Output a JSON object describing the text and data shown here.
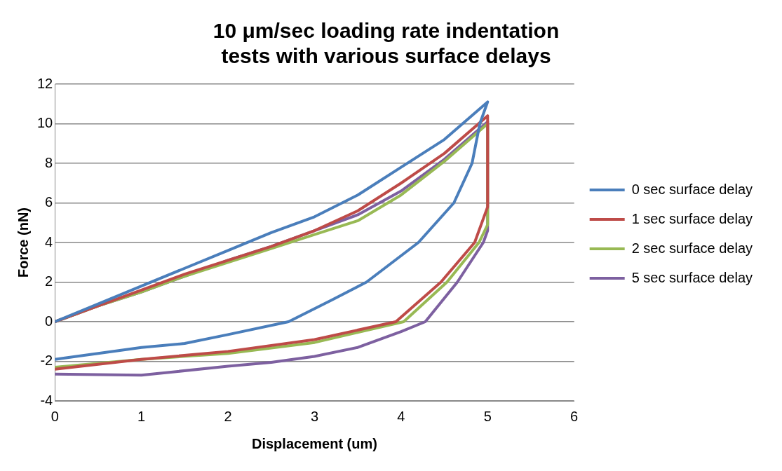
{
  "chart_data": {
    "type": "line",
    "title": "10 μm/sec loading rate indentation tests with various surface delays",
    "xlabel": "Displacement (um)",
    "ylabel": "Force (nN)",
    "xlim": [
      0,
      6
    ],
    "xticks": [
      0,
      1,
      2,
      3,
      4,
      5,
      6
    ],
    "ylim": [
      -4,
      12
    ],
    "yticks": [
      -4,
      -2,
      0,
      2,
      4,
      6,
      8,
      10,
      12
    ],
    "grid": "y",
    "legend": "right",
    "marker": "none",
    "line_style": "solid",
    "series": [
      {
        "name": "0 sec surface delay",
        "color": "#4a7ebb",
        "x": [
          0,
          0.5,
          1,
          1.5,
          2,
          2.5,
          3,
          3.5,
          4,
          4.5,
          5,
          4.91,
          4.82,
          4.61,
          4.2,
          3.6,
          3.2,
          2.7,
          2,
          1.5,
          1,
          0.5,
          0
        ],
        "values": [
          0,
          0.9,
          1.8,
          2.7,
          3.6,
          4.5,
          5.3,
          6.4,
          7.8,
          9.2,
          11.1,
          10,
          8,
          6,
          4,
          2,
          1.1,
          0,
          -0.65,
          -1.1,
          -1.3,
          -1.6,
          -1.9
        ]
      },
      {
        "name": "1 sec surface delay",
        "color": "#be4b48",
        "x": [
          0,
          0.5,
          1,
          1.5,
          2,
          2.5,
          3,
          3.5,
          4,
          4.5,
          5,
          5,
          4.85,
          4.46,
          3.94,
          3,
          2,
          1,
          0
        ],
        "values": [
          0,
          0.8,
          1.6,
          2.4,
          3.1,
          3.8,
          4.6,
          5.6,
          7,
          8.5,
          10.4,
          5.8,
          4,
          2,
          0,
          -0.9,
          -1.5,
          -1.9,
          -2.4
        ]
      },
      {
        "name": "2 sec surface delay",
        "color": "#98b954",
        "x": [
          0,
          0.5,
          1,
          1.5,
          2,
          2.5,
          3,
          3.5,
          4,
          4.5,
          5,
          5,
          4.9,
          4.53,
          4.03,
          3,
          2,
          1,
          0
        ],
        "values": [
          0,
          0.8,
          1.5,
          2.3,
          3,
          3.7,
          4.4,
          5.1,
          6.4,
          8.1,
          10,
          4.9,
          4,
          2,
          0,
          -1.05,
          -1.6,
          -1.9,
          -2.3
        ]
      },
      {
        "name": "5 sec surface delay",
        "color": "#7d60a0",
        "x": [
          0,
          0.5,
          1,
          1.5,
          2,
          2.5,
          3,
          3.5,
          4,
          4.5,
          5,
          5,
          4.95,
          4.65,
          4.28,
          4,
          3.5,
          3,
          2.5,
          2,
          1,
          0
        ],
        "values": [
          0,
          0.8,
          1.5,
          2.3,
          3.1,
          3.8,
          4.6,
          5.4,
          6.6,
          8.2,
          10.1,
          4.6,
          4,
          2,
          0,
          -0.5,
          -1.3,
          -1.75,
          -2.05,
          -2.25,
          -2.7,
          -2.65
        ]
      }
    ]
  }
}
